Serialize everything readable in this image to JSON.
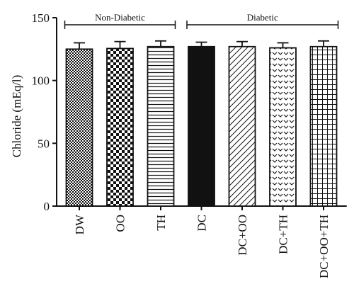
{
  "chart_data": {
    "type": "bar",
    "ylabel": "Chloride (mEq/l)",
    "ylim": [
      0,
      150
    ],
    "yticks": [
      0,
      50,
      100,
      150
    ],
    "categories": [
      "DW",
      "OO",
      "TH",
      "DC",
      "DC+OO",
      "DC+TH",
      "DC+OO+TH"
    ],
    "values": [
      125,
      125.5,
      127,
      127,
      127,
      126,
      127
    ],
    "errors": [
      5,
      5.5,
      4.5,
      3.5,
      4,
      4,
      4.5
    ],
    "patterns": [
      "checker-fine",
      "checker-coarse",
      "horizontal-lines",
      "solid-black",
      "diagonal-lines",
      "chevron-dots",
      "grid"
    ],
    "groups": [
      {
        "label": "Non-Diabetic",
        "start": 0,
        "end": 2
      },
      {
        "label": "Diabetic",
        "start": 3,
        "end": 6
      }
    ]
  }
}
